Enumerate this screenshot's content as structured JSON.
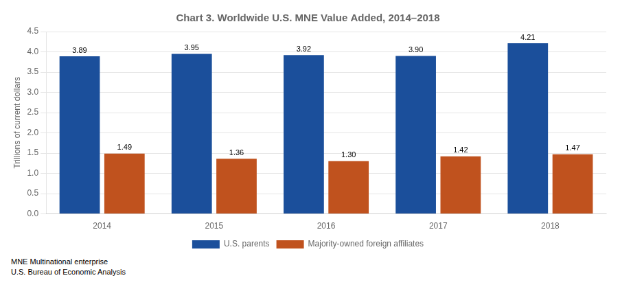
{
  "chart_data": {
    "type": "bar",
    "title": "Chart 3. Worldwide U.S. MNE Value Added, 2014–2018",
    "ylabel": "Trillions of current dollars",
    "categories": [
      "2014",
      "2015",
      "2016",
      "2017",
      "2018"
    ],
    "series": [
      {
        "name": "U.S. parents",
        "color": "#1b4f9b",
        "values": [
          3.89,
          3.95,
          3.92,
          3.9,
          4.21
        ],
        "value_labels": [
          "3.89",
          "3.95",
          "3.92",
          "3.90",
          "4.21"
        ]
      },
      {
        "name": "Majority-owned foreign affiliates",
        "color": "#c0521e",
        "values": [
          1.49,
          1.36,
          1.3,
          1.42,
          1.47
        ],
        "value_labels": [
          "1.49",
          "1.36",
          "1.30",
          "1.42",
          "1.47"
        ]
      }
    ],
    "ylim": [
      0,
      4.5
    ],
    "yticks": [
      {
        "value": 0.0,
        "label": "0.0"
      },
      0.5,
      {
        "value": 1.0,
        "label": "1.0"
      },
      1.5,
      {
        "value": 2.0,
        "label": "2.0"
      },
      2.5,
      {
        "value": 3.0,
        "label": "3.0"
      },
      3.5,
      {
        "value": 4.0,
        "label": "4.0"
      },
      4.5
    ],
    "grid": true,
    "legend": "bottom",
    "data_labels": true,
    "annotations": [
      "MNE  Multinational enterprise",
      "U.S. Bureau of Economic Analysis"
    ]
  }
}
